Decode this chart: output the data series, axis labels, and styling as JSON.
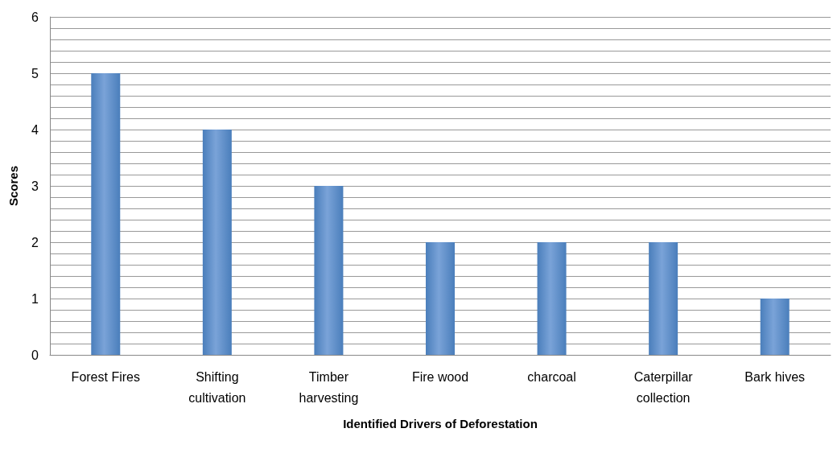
{
  "chart_data": {
    "type": "bar",
    "xlabel": "Identified Drivers of Deforestation",
    "ylabel": "Scores",
    "categories": [
      "Forest Fires",
      "Shifting\ncultivation",
      "Timber\nharvesting",
      "Fire wood",
      "charcoal",
      "Caterpillar\ncollection",
      "Bark hives"
    ],
    "values": [
      5,
      4,
      3,
      2,
      2,
      2,
      1
    ],
    "color": "#4a7ebb",
    "ylim": [
      0,
      6
    ],
    "yticks": [
      0,
      {
        "value": 0.2,
        "label": null
      },
      {
        "value": 0.4,
        "label": null
      },
      {
        "value": 0.6,
        "label": null
      },
      {
        "value": 0.8,
        "label": null
      },
      1,
      {
        "value": 1.2,
        "label": null
      },
      {
        "value": 1.4,
        "label": null
      },
      {
        "value": 1.6,
        "label": null
      },
      {
        "value": 1.8,
        "label": null
      },
      2,
      {
        "value": 2.2,
        "label": null
      },
      {
        "value": 2.4,
        "label": null
      },
      {
        "value": 2.6,
        "label": null
      },
      {
        "value": 2.8,
        "label": null
      },
      3,
      {
        "value": 3.2,
        "label": null
      },
      {
        "value": 3.4,
        "label": null
      },
      {
        "value": 3.6,
        "label": null
      },
      {
        "value": 3.8,
        "label": null
      },
      4,
      {
        "value": 4.2,
        "label": null
      },
      {
        "value": 4.4,
        "label": null
      },
      {
        "value": 4.6,
        "label": null
      },
      {
        "value": 4.8,
        "label": null
      },
      5,
      {
        "value": 5.2,
        "label": null
      },
      {
        "value": 5.4,
        "label": null
      },
      {
        "value": 5.6,
        "label": null
      },
      {
        "value": 5.8,
        "label": null
      },
      6
    ],
    "grid": "y"
  }
}
